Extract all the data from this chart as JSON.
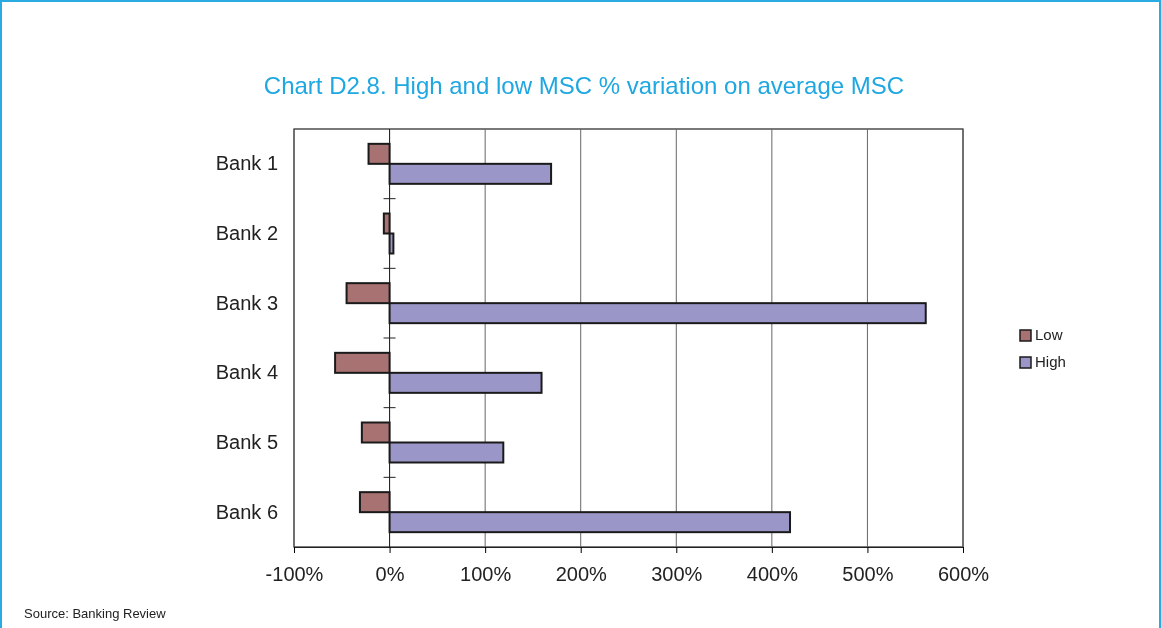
{
  "chart_data": {
    "type": "bar",
    "orientation": "horizontal",
    "title": "Chart D2.8. High and low MSC % variation on average MSC",
    "categories": [
      "Bank 1",
      "Bank 2",
      "Bank 3",
      "Bank 4",
      "Bank 5",
      "Bank 6"
    ],
    "series": [
      {
        "name": "Low",
        "color": "#a87272",
        "values": [
          -22,
          -6,
          -45,
          -57,
          -29,
          -31
        ]
      },
      {
        "name": "High",
        "color": "#9b96c8",
        "values": [
          169,
          4,
          561,
          159,
          119,
          419
        ]
      }
    ],
    "xlim": [
      -100,
      600
    ],
    "xticks": [
      {
        "value": -100,
        "label": "-100%"
      },
      {
        "value": 0,
        "label": "0%"
      },
      {
        "value": 100,
        "label": "100%"
      },
      {
        "value": 200,
        "label": "200%"
      },
      {
        "value": 300,
        "label": "300%"
      },
      {
        "value": 400,
        "label": "400%"
      },
      {
        "value": 500,
        "label": "500%"
      },
      {
        "value": 600,
        "label": "600%"
      }
    ],
    "grid": "x",
    "legend": "right",
    "annotations": [
      "Source:  Banking Review"
    ]
  }
}
